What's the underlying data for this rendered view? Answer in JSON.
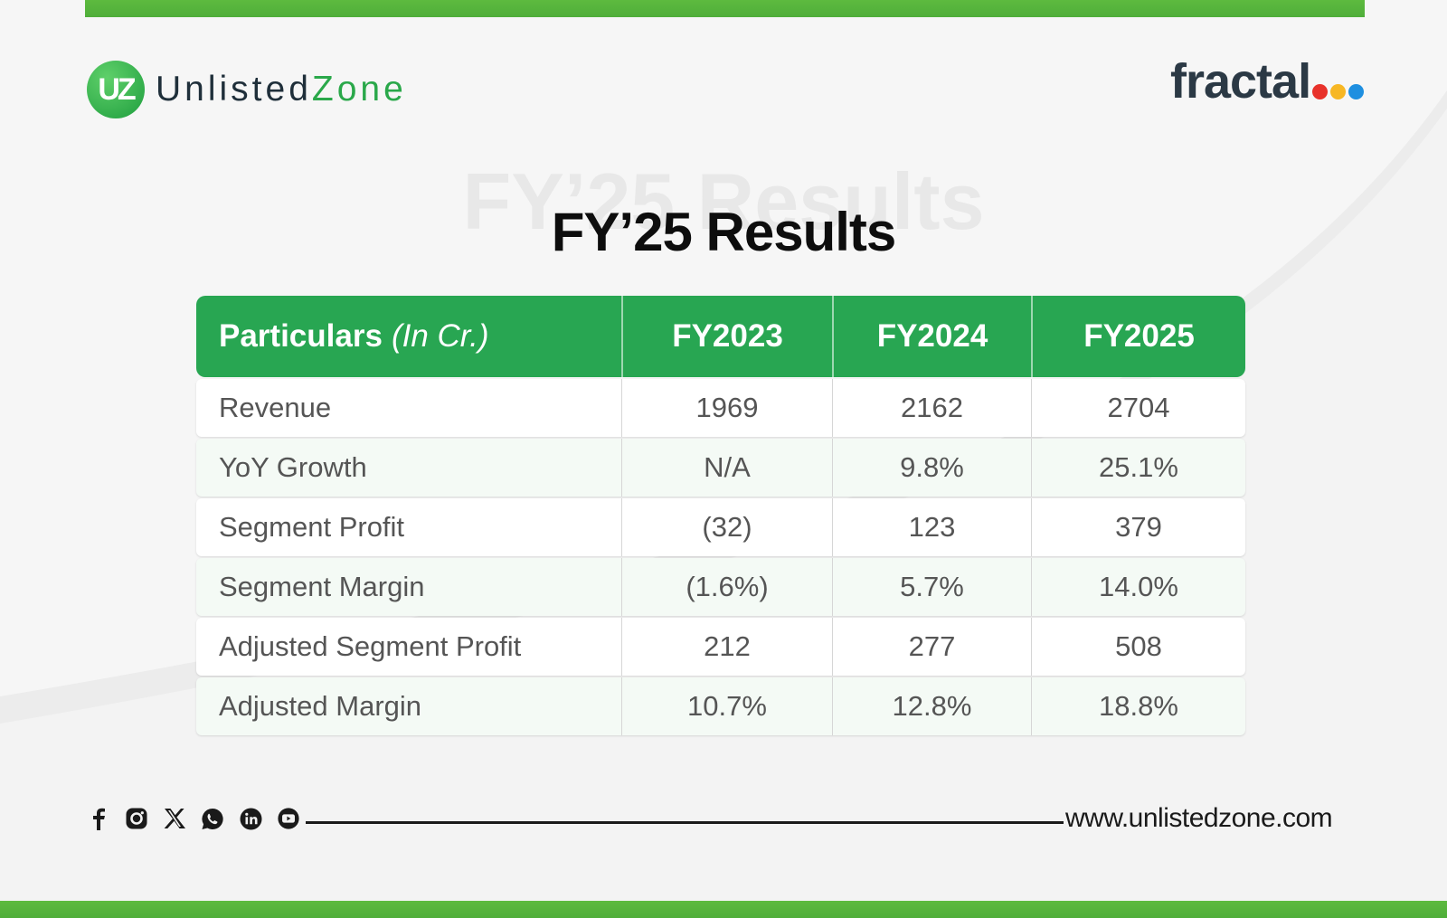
{
  "brand": {
    "logo_mark": "UZ",
    "logo_word_1": "Unlisted",
    "logo_word_2": "Zone",
    "company_logo": "fractal",
    "company_dot_colors": [
      "#e8322b",
      "#f7b724",
      "#1e8fe0"
    ],
    "accent": "#28a652"
  },
  "title": "FY’25 Results",
  "ghost_title": "FY’25 Results",
  "table": {
    "header": {
      "particulars": "Particulars",
      "unit": "(In Cr.)",
      "years": [
        "FY2023",
        "FY2024",
        "FY2025"
      ]
    },
    "rows": [
      {
        "label": "Revenue",
        "values": [
          "1969",
          "2162",
          "2704"
        ]
      },
      {
        "label": "YoY Growth",
        "values": [
          "N/A",
          "9.8%",
          "25.1%"
        ]
      },
      {
        "label": "Segment Profit",
        "values": [
          "(32)",
          "123",
          "379"
        ]
      },
      {
        "label": "Segment Margin",
        "values": [
          "(1.6%)",
          "5.7%",
          "14.0%"
        ]
      },
      {
        "label": "Adjusted Segment Profit",
        "values": [
          "212",
          "277",
          "508"
        ]
      },
      {
        "label": "Adjusted Margin",
        "values": [
          "10.7%",
          "12.8%",
          "18.8%"
        ]
      }
    ]
  },
  "footer": {
    "social_icons": [
      "facebook-icon",
      "instagram-icon",
      "x-icon",
      "whatsapp-icon",
      "linkedin-icon",
      "youtube-icon"
    ],
    "website": "www.unlistedzone.com"
  }
}
